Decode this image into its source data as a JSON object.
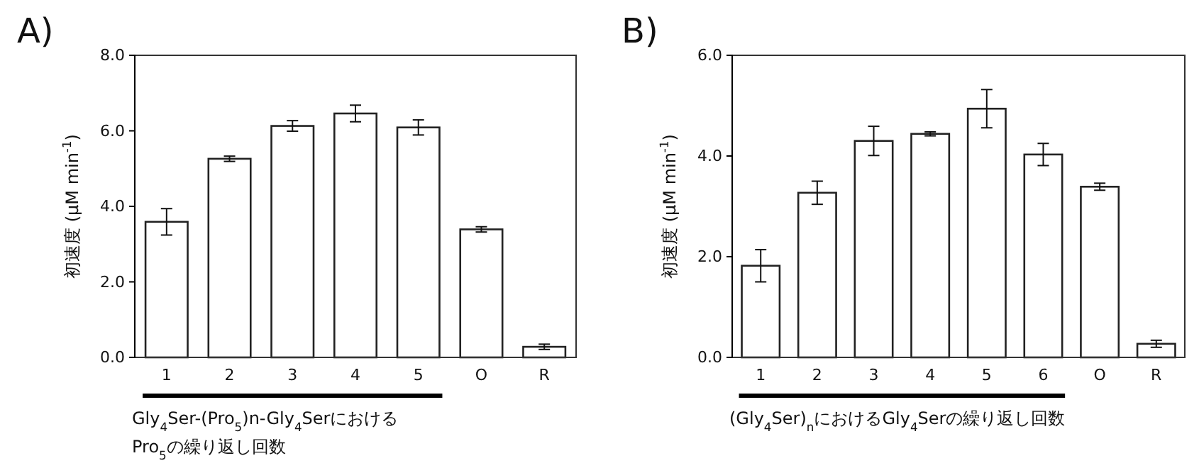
{
  "chart_data": [
    {
      "type": "bar",
      "title": "A)",
      "categories": [
        "1",
        "2",
        "3",
        "4",
        "5",
        "O",
        "R"
      ],
      "values": [
        3.59,
        5.26,
        6.13,
        6.46,
        6.09,
        3.39,
        0.28
      ],
      "errors": [
        0.35,
        0.07,
        0.14,
        0.22,
        0.2,
        0.07,
        0.07
      ],
      "color": "#ffffff",
      "ylim": [
        0,
        8
      ],
      "yticks": [
        {
          "value": 0,
          "label": "0.0"
        },
        {
          "value": 2,
          "label": "2.0"
        },
        {
          "value": 4,
          "label": "4.0"
        },
        {
          "value": 6,
          "label": "6.0"
        },
        {
          "value": 8,
          "label": "8.0"
        }
      ],
      "ylabel": "初速度 (μM min$^{-1}$)",
      "xlabel": "Gly$_{4}$Ser-(Pro$_{5}$)n-Gly$_{4}$Serにおける\nPro$_{5}$の繰り返し回数"
    },
    {
      "type": "bar",
      "title": "B)",
      "categories": [
        "1",
        "2",
        "3",
        "4",
        "5",
        "6",
        "O",
        "R"
      ],
      "values": [
        1.82,
        3.27,
        4.3,
        4.44,
        4.94,
        4.03,
        3.39,
        0.27
      ],
      "errors": [
        0.32,
        0.23,
        0.29,
        0.04,
        0.38,
        0.22,
        0.07,
        0.07
      ],
      "color": "#ffffff",
      "ylim": [
        0,
        6
      ],
      "yticks": [
        {
          "value": 0,
          "label": "0.0"
        },
        {
          "value": 2,
          "label": "2.0"
        },
        {
          "value": 4,
          "label": "4.0"
        },
        {
          "value": 6,
          "label": "6.0"
        }
      ],
      "ylabel": "初速度 (μM min$^{-1}$)",
      "xlabel": "(Gly$_{4}$Ser)$_{n}$におけるGly$_{4}$Serの繰り返し回数"
    }
  ]
}
